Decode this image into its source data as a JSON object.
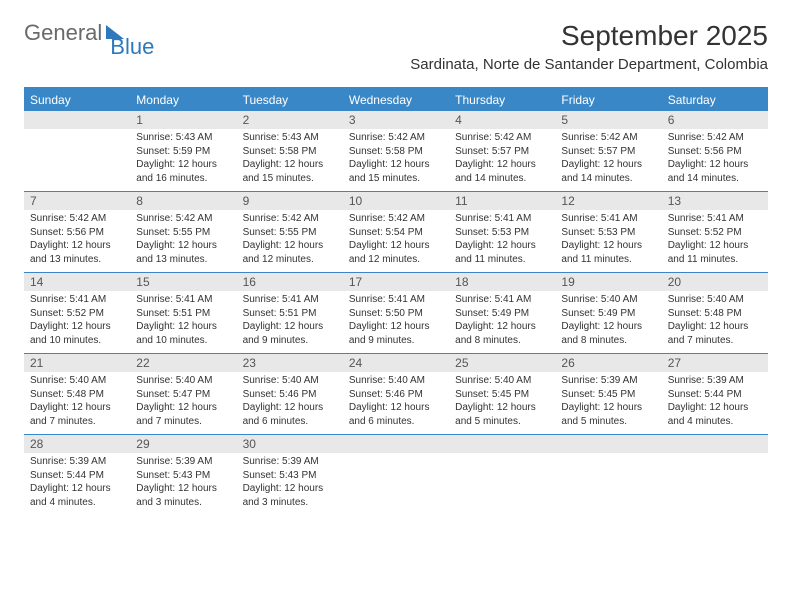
{
  "brand": {
    "part1": "General",
    "part2": "Blue"
  },
  "title": "September 2025",
  "location": "Sardinata, Norte de Santander Department, Colombia",
  "colors": {
    "header_bg": "#3a87c7",
    "header_text": "#ffffff",
    "daynum_bg": "#e8e8e8",
    "border": "#3a87c7",
    "body_text": "#333333",
    "logo_gray": "#6a6a6a",
    "logo_blue": "#2e79bd"
  },
  "weekdays": [
    "Sunday",
    "Monday",
    "Tuesday",
    "Wednesday",
    "Thursday",
    "Friday",
    "Saturday"
  ],
  "weeks": [
    [
      {
        "n": "",
        "sr": "",
        "ss": "",
        "dl": ""
      },
      {
        "n": "1",
        "sr": "5:43 AM",
        "ss": "5:59 PM",
        "dl": "12 hours and 16 minutes."
      },
      {
        "n": "2",
        "sr": "5:43 AM",
        "ss": "5:58 PM",
        "dl": "12 hours and 15 minutes."
      },
      {
        "n": "3",
        "sr": "5:42 AM",
        "ss": "5:58 PM",
        "dl": "12 hours and 15 minutes."
      },
      {
        "n": "4",
        "sr": "5:42 AM",
        "ss": "5:57 PM",
        "dl": "12 hours and 14 minutes."
      },
      {
        "n": "5",
        "sr": "5:42 AM",
        "ss": "5:57 PM",
        "dl": "12 hours and 14 minutes."
      },
      {
        "n": "6",
        "sr": "5:42 AM",
        "ss": "5:56 PM",
        "dl": "12 hours and 14 minutes."
      }
    ],
    [
      {
        "n": "7",
        "sr": "5:42 AM",
        "ss": "5:56 PM",
        "dl": "12 hours and 13 minutes."
      },
      {
        "n": "8",
        "sr": "5:42 AM",
        "ss": "5:55 PM",
        "dl": "12 hours and 13 minutes."
      },
      {
        "n": "9",
        "sr": "5:42 AM",
        "ss": "5:55 PM",
        "dl": "12 hours and 12 minutes."
      },
      {
        "n": "10",
        "sr": "5:42 AM",
        "ss": "5:54 PM",
        "dl": "12 hours and 12 minutes."
      },
      {
        "n": "11",
        "sr": "5:41 AM",
        "ss": "5:53 PM",
        "dl": "12 hours and 11 minutes."
      },
      {
        "n": "12",
        "sr": "5:41 AM",
        "ss": "5:53 PM",
        "dl": "12 hours and 11 minutes."
      },
      {
        "n": "13",
        "sr": "5:41 AM",
        "ss": "5:52 PM",
        "dl": "12 hours and 11 minutes."
      }
    ],
    [
      {
        "n": "14",
        "sr": "5:41 AM",
        "ss": "5:52 PM",
        "dl": "12 hours and 10 minutes."
      },
      {
        "n": "15",
        "sr": "5:41 AM",
        "ss": "5:51 PM",
        "dl": "12 hours and 10 minutes."
      },
      {
        "n": "16",
        "sr": "5:41 AM",
        "ss": "5:51 PM",
        "dl": "12 hours and 9 minutes."
      },
      {
        "n": "17",
        "sr": "5:41 AM",
        "ss": "5:50 PM",
        "dl": "12 hours and 9 minutes."
      },
      {
        "n": "18",
        "sr": "5:41 AM",
        "ss": "5:49 PM",
        "dl": "12 hours and 8 minutes."
      },
      {
        "n": "19",
        "sr": "5:40 AM",
        "ss": "5:49 PM",
        "dl": "12 hours and 8 minutes."
      },
      {
        "n": "20",
        "sr": "5:40 AM",
        "ss": "5:48 PM",
        "dl": "12 hours and 7 minutes."
      }
    ],
    [
      {
        "n": "21",
        "sr": "5:40 AM",
        "ss": "5:48 PM",
        "dl": "12 hours and 7 minutes."
      },
      {
        "n": "22",
        "sr": "5:40 AM",
        "ss": "5:47 PM",
        "dl": "12 hours and 7 minutes."
      },
      {
        "n": "23",
        "sr": "5:40 AM",
        "ss": "5:46 PM",
        "dl": "12 hours and 6 minutes."
      },
      {
        "n": "24",
        "sr": "5:40 AM",
        "ss": "5:46 PM",
        "dl": "12 hours and 6 minutes."
      },
      {
        "n": "25",
        "sr": "5:40 AM",
        "ss": "5:45 PM",
        "dl": "12 hours and 5 minutes."
      },
      {
        "n": "26",
        "sr": "5:39 AM",
        "ss": "5:45 PM",
        "dl": "12 hours and 5 minutes."
      },
      {
        "n": "27",
        "sr": "5:39 AM",
        "ss": "5:44 PM",
        "dl": "12 hours and 4 minutes."
      }
    ],
    [
      {
        "n": "28",
        "sr": "5:39 AM",
        "ss": "5:44 PM",
        "dl": "12 hours and 4 minutes."
      },
      {
        "n": "29",
        "sr": "5:39 AM",
        "ss": "5:43 PM",
        "dl": "12 hours and 3 minutes."
      },
      {
        "n": "30",
        "sr": "5:39 AM",
        "ss": "5:43 PM",
        "dl": "12 hours and 3 minutes."
      },
      {
        "n": "",
        "sr": "",
        "ss": "",
        "dl": ""
      },
      {
        "n": "",
        "sr": "",
        "ss": "",
        "dl": ""
      },
      {
        "n": "",
        "sr": "",
        "ss": "",
        "dl": ""
      },
      {
        "n": "",
        "sr": "",
        "ss": "",
        "dl": ""
      }
    ]
  ],
  "labels": {
    "sunrise": "Sunrise:",
    "sunset": "Sunset:",
    "daylight": "Daylight:"
  }
}
